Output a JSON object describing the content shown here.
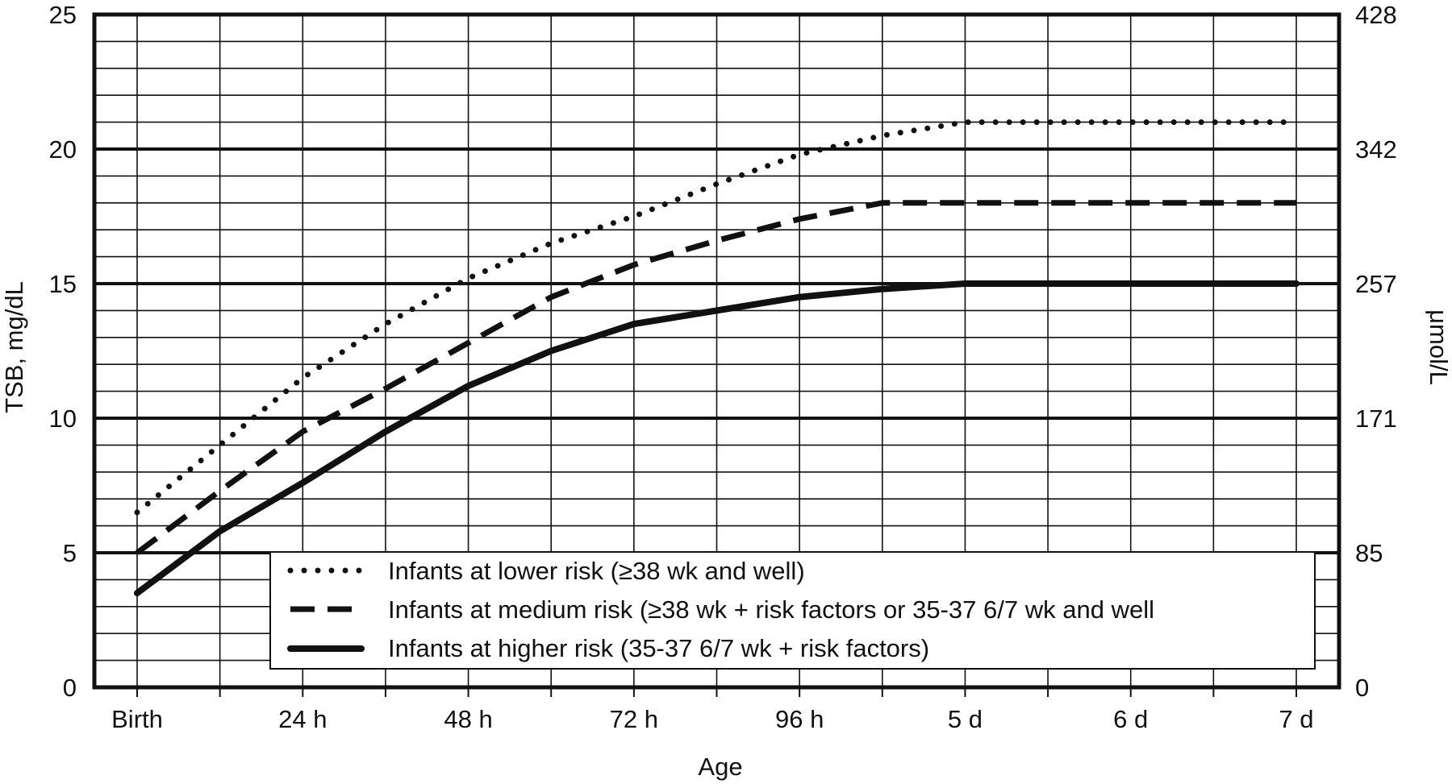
{
  "chart_data": {
    "type": "line",
    "title": "",
    "xlabel": "Age",
    "ylabel": "TSB, mg/dL",
    "ylabel_right": "μmol/L",
    "x_categories": [
      "Birth",
      "24 h",
      "48 h",
      "72 h",
      "96 h",
      "5 d",
      "6 d",
      "7 d"
    ],
    "x_unit": "hours",
    "x_range": [
      0,
      168
    ],
    "x_minor_step_hours": 12,
    "ylim": [
      0,
      25
    ],
    "yticks": [
      0,
      5,
      10,
      15,
      20,
      25
    ],
    "y_minor_step": 1,
    "y_right_ticks": [
      {
        "at_mg_dl": 0,
        "label": "0"
      },
      {
        "at_mg_dl": 5,
        "label": "85"
      },
      {
        "at_mg_dl": 10,
        "label": "171"
      },
      {
        "at_mg_dl": 15,
        "label": "257"
      },
      {
        "at_mg_dl": 20,
        "label": "342"
      },
      {
        "at_mg_dl": 25,
        "label": "428"
      }
    ],
    "grid": true,
    "legend_position": "bottom-center",
    "series": [
      {
        "name": "Infants at lower risk (≥38 wk and well)",
        "style": "dotted",
        "x": [
          0,
          12,
          24,
          36,
          48,
          60,
          72,
          84,
          96,
          108,
          120,
          132,
          144,
          156,
          168
        ],
        "y": [
          6.5,
          9.0,
          11.5,
          13.5,
          15.2,
          16.5,
          17.5,
          18.7,
          19.8,
          20.5,
          21.0,
          21.0,
          21.0,
          21.0,
          21.0
        ]
      },
      {
        "name": "Infants at medium risk (≥38 wk + risk factors or 35-37 6/7 wk and well",
        "style": "dashed",
        "x": [
          0,
          12,
          24,
          36,
          48,
          60,
          72,
          84,
          96,
          108,
          120,
          132,
          144,
          156,
          168
        ],
        "y": [
          5.0,
          7.3,
          9.5,
          11.1,
          12.8,
          14.5,
          15.7,
          16.6,
          17.4,
          18.0,
          18.0,
          18.0,
          18.0,
          18.0,
          18.0
        ]
      },
      {
        "name": "Infants at higher risk (35-37 6/7 wk + risk factors)",
        "style": "solid",
        "x": [
          0,
          12,
          24,
          36,
          48,
          60,
          72,
          84,
          96,
          108,
          120,
          132,
          144,
          156,
          168
        ],
        "y": [
          3.5,
          5.8,
          7.6,
          9.5,
          11.2,
          12.5,
          13.5,
          14.0,
          14.5,
          14.8,
          15.0,
          15.0,
          15.0,
          15.0,
          15.0
        ]
      }
    ],
    "colors": {
      "lines": "#111111",
      "grid": "#111111",
      "background": "#ffffff"
    }
  }
}
